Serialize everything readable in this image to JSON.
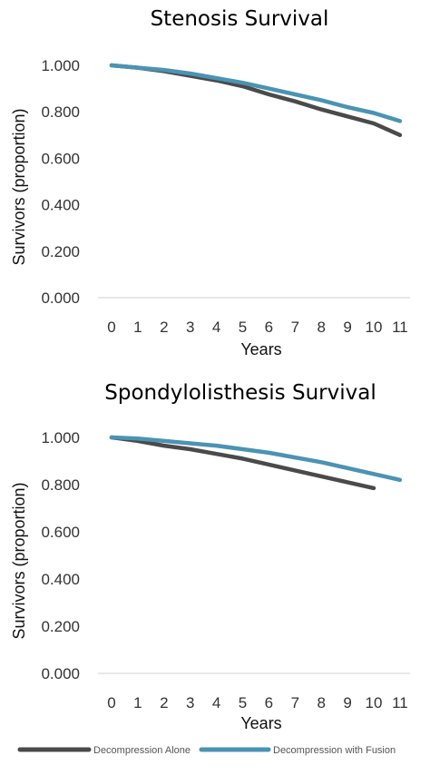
{
  "chart_data": [
    {
      "type": "line",
      "title": "Stenosis Survival",
      "xlabel": "Years",
      "ylabel": "Survivors (proportion)",
      "ylim": [
        0,
        1.0
      ],
      "yticks": [
        "0.000",
        "0.200",
        "0.400",
        "0.600",
        "0.800",
        "1.000"
      ],
      "x": [
        0,
        1,
        2,
        3,
        4,
        5,
        6,
        7,
        8,
        9,
        10,
        11
      ],
      "grid": false,
      "series": [
        {
          "name": "Decompression Alone",
          "color": "#4a4a4a",
          "values": [
            1.0,
            0.99,
            0.975,
            0.955,
            0.935,
            0.91,
            0.875,
            0.845,
            0.81,
            0.78,
            0.75,
            0.7
          ]
        },
        {
          "name": "Decompression with Fusion",
          "color": "#4a93b3",
          "values": [
            1.0,
            0.99,
            0.98,
            0.965,
            0.945,
            0.925,
            0.9,
            0.875,
            0.85,
            0.82,
            0.795,
            0.76
          ]
        }
      ]
    },
    {
      "type": "line",
      "title": "Spondylolisthesis Survival",
      "xlabel": "Years",
      "ylabel": "Survivors (proportion)",
      "ylim": [
        0,
        1.0
      ],
      "yticks": [
        "0.000",
        "0.200",
        "0.400",
        "0.600",
        "0.800",
        "1.000"
      ],
      "x": [
        0,
        1,
        2,
        3,
        4,
        5,
        6,
        7,
        8,
        9,
        10,
        11
      ],
      "grid": false,
      "series": [
        {
          "name": "Decompression Alone",
          "color": "#4a4a4a",
          "values": [
            1.0,
            0.985,
            0.965,
            0.95,
            0.93,
            0.91,
            0.885,
            0.86,
            0.835,
            0.81,
            0.785,
            null
          ]
        },
        {
          "name": "Decompression with Fusion",
          "color": "#4a93b3",
          "values": [
            1.0,
            0.995,
            0.985,
            0.975,
            0.965,
            0.95,
            0.935,
            0.915,
            0.895,
            0.87,
            0.845,
            0.82
          ]
        }
      ]
    }
  ],
  "legend": {
    "placement": "bottom",
    "items": [
      {
        "label": "Decompression Alone",
        "color": "#4a4a4a"
      },
      {
        "label": "Decompression with Fusion",
        "color": "#4a93b3"
      }
    ]
  }
}
